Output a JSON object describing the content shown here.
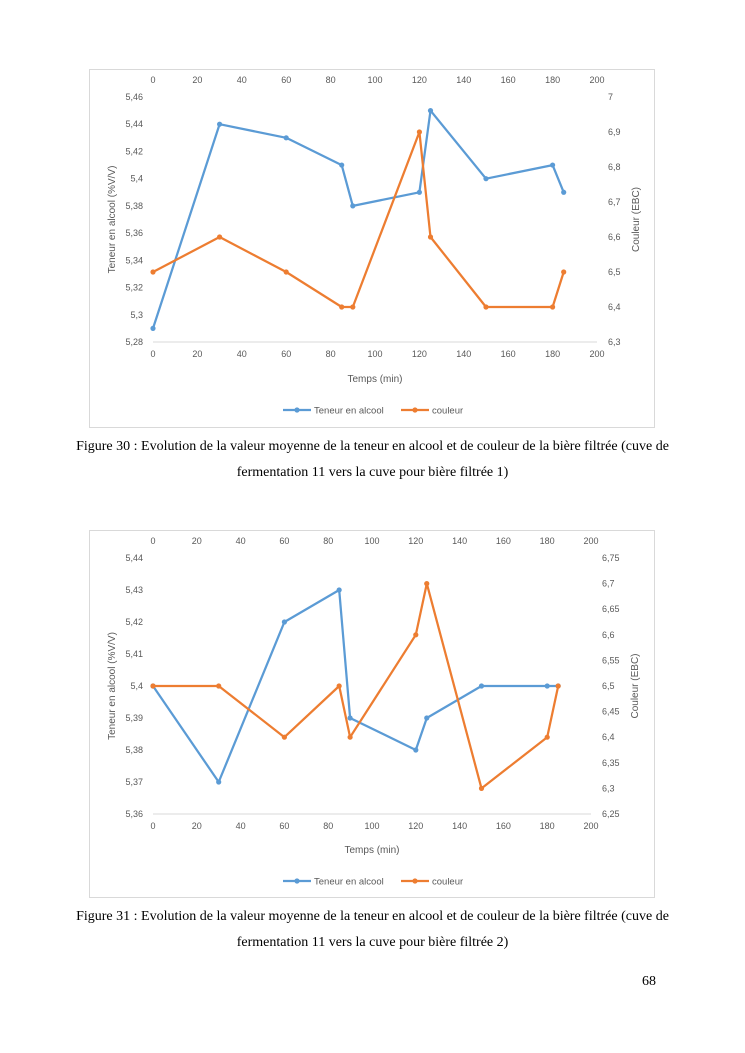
{
  "page_number": "68",
  "captions": [
    "Figure 30 : Evolution de la valeur moyenne de la teneur en alcool et de couleur de la bière filtrée (cuve de fermentation 11 vers la cuve pour bière filtrée 1)",
    "Figure 31 : Evolution de la valeur moyenne de la teneur en alcool et de couleur de la bière filtrée (cuve de fermentation 11 vers la cuve pour bière filtrée 2)"
  ],
  "chart_data": [
    {
      "type": "line",
      "title": "",
      "xlabel": "Temps (min)",
      "ylabel": "Teneur en alcool (%V/V)",
      "y2label": "Couleur (EBC)",
      "xlim": [
        0,
        200
      ],
      "ylim": [
        5.28,
        5.46
      ],
      "y2lim": [
        6.3,
        7
      ],
      "x_ticks": [
        "0",
        "20",
        "40",
        "60",
        "80",
        "100",
        "120",
        "140",
        "160",
        "180",
        "200"
      ],
      "y_ticks": [
        "5,28",
        "5,3",
        "5,32",
        "5,34",
        "5,36",
        "5,38",
        "5,4",
        "5,42",
        "5,44",
        "5,46"
      ],
      "y2_ticks": [
        "6,3",
        "6,4",
        "6,5",
        "6,6",
        "6,7",
        "6,8",
        "6,9",
        "7"
      ],
      "legend_position": "bottom",
      "series": [
        {
          "name": "Teneur en alcool",
          "axis": "left",
          "color": "#5b9bd5",
          "points": [
            [
              0,
              5.29
            ],
            [
              30,
              5.44
            ],
            [
              60,
              5.43
            ],
            [
              85,
              5.41
            ],
            [
              90,
              5.38
            ],
            [
              120,
              5.39
            ],
            [
              125,
              5.45
            ],
            [
              150,
              5.4
            ],
            [
              180,
              5.41
            ],
            [
              185,
              5.39
            ]
          ]
        },
        {
          "name": "couleur",
          "axis": "right",
          "color": "#ed7d31",
          "points": [
            [
              0,
              6.5
            ],
            [
              30,
              6.6
            ],
            [
              60,
              6.5
            ],
            [
              85,
              6.4
            ],
            [
              90,
              6.4
            ],
            [
              120,
              6.9
            ],
            [
              125,
              6.6
            ],
            [
              150,
              6.4
            ],
            [
              180,
              6.4
            ],
            [
              185,
              6.5
            ]
          ]
        }
      ]
    },
    {
      "type": "line",
      "title": "",
      "xlabel": "Temps (min)",
      "ylabel": "Teneur en alcool (%V/V)",
      "y2label": "Couleur (EBC)",
      "xlim": [
        0,
        200
      ],
      "ylim": [
        5.36,
        5.44
      ],
      "y2lim": [
        6.25,
        6.75
      ],
      "x_ticks": [
        "0",
        "20",
        "40",
        "60",
        "80",
        "100",
        "120",
        "140",
        "160",
        "180",
        "200"
      ],
      "y_ticks": [
        "5,36",
        "5,37",
        "5,38",
        "5,39",
        "5,4",
        "5,41",
        "5,42",
        "5,43",
        "5,44"
      ],
      "y2_ticks": [
        "6,25",
        "6,3",
        "6,35",
        "6,4",
        "6,45",
        "6,5",
        "6,55",
        "6,6",
        "6,65",
        "6,7",
        "6,75"
      ],
      "legend_position": "bottom",
      "series": [
        {
          "name": "Teneur en alcool",
          "axis": "left",
          "color": "#5b9bd5",
          "points": [
            [
              0,
              5.4
            ],
            [
              30,
              5.37
            ],
            [
              60,
              5.42
            ],
            [
              85,
              5.43
            ],
            [
              90,
              5.39
            ],
            [
              120,
              5.38
            ],
            [
              125,
              5.39
            ],
            [
              150,
              5.4
            ],
            [
              180,
              5.4
            ],
            [
              185,
              5.4
            ]
          ]
        },
        {
          "name": "couleur",
          "axis": "right",
          "color": "#ed7d31",
          "points": [
            [
              0,
              6.5
            ],
            [
              30,
              6.5
            ],
            [
              60,
              6.4
            ],
            [
              85,
              6.5
            ],
            [
              90,
              6.4
            ],
            [
              120,
              6.6
            ],
            [
              125,
              6.7
            ],
            [
              150,
              6.3
            ],
            [
              180,
              6.4
            ],
            [
              185,
              6.5
            ]
          ]
        }
      ]
    }
  ]
}
